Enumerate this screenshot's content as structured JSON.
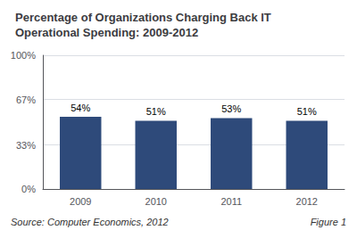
{
  "chart_data": {
    "type": "bar",
    "title": "Percentage of Organizations Charging Back IT\nOperational Spending: 2009-2012",
    "categories": [
      "2009",
      "2010",
      "2011",
      "2012"
    ],
    "values": [
      54,
      51,
      53,
      51
    ],
    "value_labels": [
      "54%",
      "51%",
      "53%",
      "51%"
    ],
    "data_labels": true,
    "color": "#2E4A7A",
    "ylim": [
      0,
      100
    ],
    "yticks": [
      {
        "value": 0,
        "label": "0%"
      },
      {
        "value": 33,
        "label": "33%"
      },
      {
        "value": 67,
        "label": "67%"
      },
      {
        "value": 100,
        "label": "100%"
      }
    ],
    "grid": true,
    "annotations": [
      "Source: Computer Economics, 2012",
      "Figure 1"
    ]
  }
}
